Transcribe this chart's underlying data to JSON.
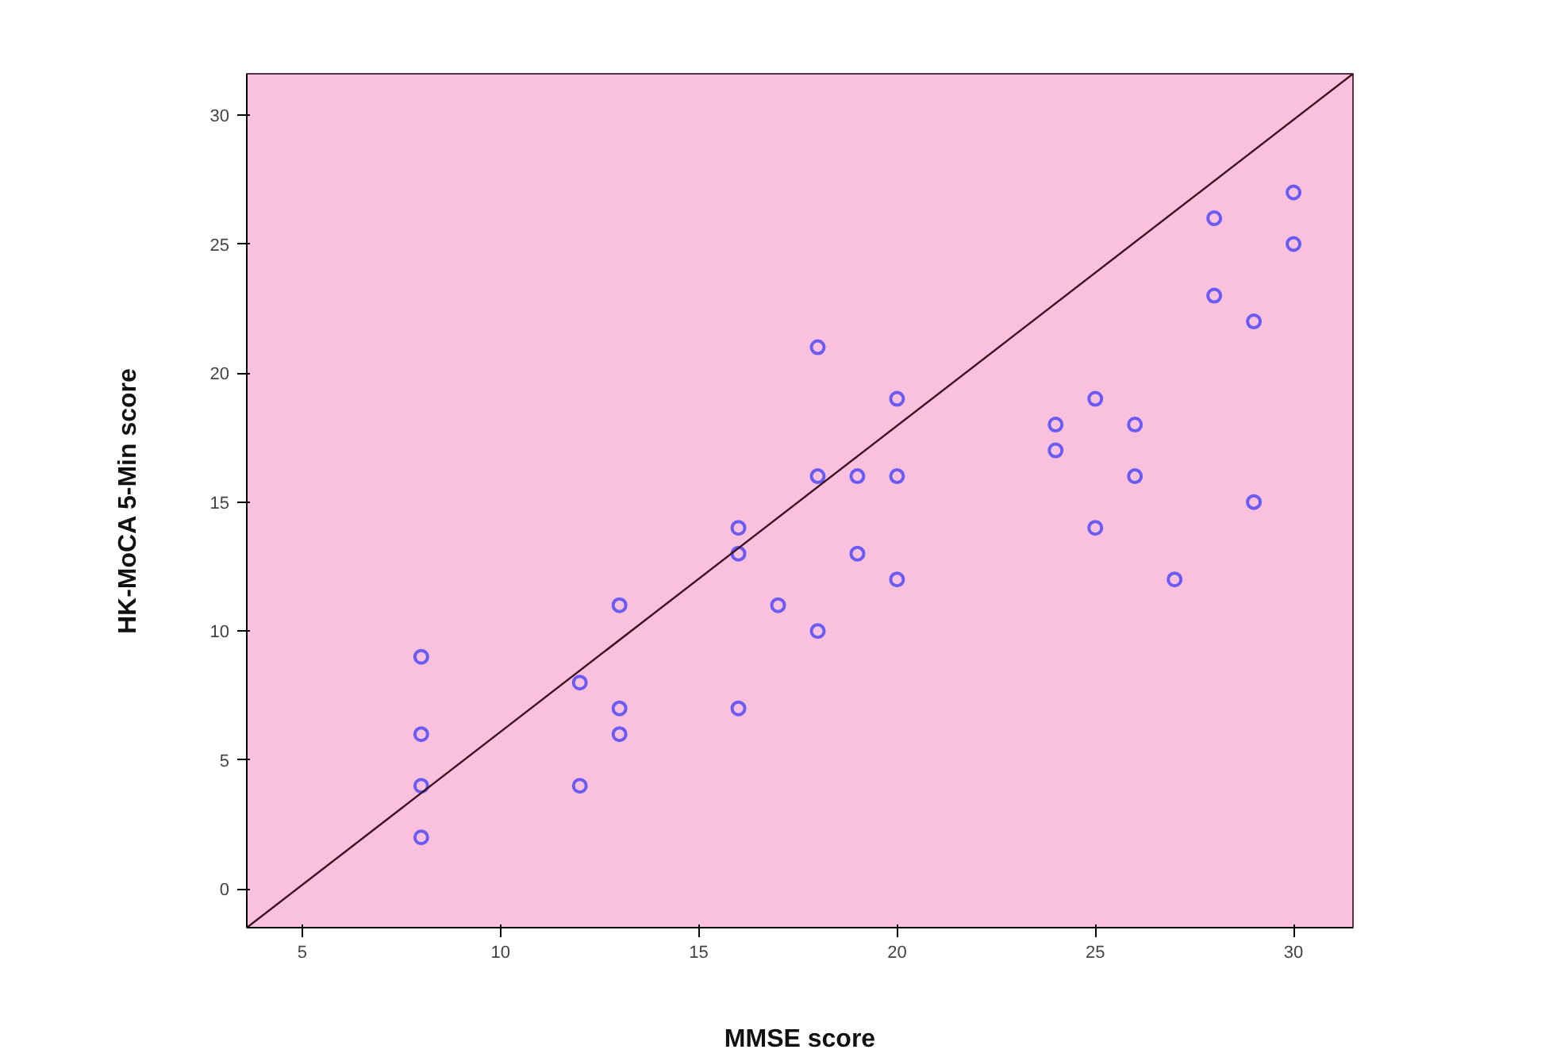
{
  "chart_data": {
    "type": "scatter",
    "xlabel": "MMSE score",
    "ylabel": "HK-MoCA 5-Min score",
    "xlim": [
      3.6,
      31.5
    ],
    "ylim": [
      -1.5,
      31.6
    ],
    "xticks": [
      5,
      10,
      15,
      20,
      25,
      30
    ],
    "yticks": [
      0,
      5,
      10,
      15,
      20,
      25,
      30
    ],
    "grid": false,
    "series": [
      {
        "marker": "circle",
        "color": "#6a5cf0",
        "x": [
          8,
          8,
          8,
          8,
          12,
          12,
          13,
          13,
          13,
          16,
          16,
          16,
          17,
          18,
          18,
          18,
          19,
          19,
          20,
          20,
          20,
          24,
          24,
          25,
          25,
          26,
          26,
          27,
          28,
          28,
          29,
          29,
          30,
          30
        ],
        "values": [
          9,
          6,
          4,
          2,
          8,
          4,
          11,
          7,
          6,
          14,
          13,
          7,
          11,
          21,
          16,
          10,
          16,
          13,
          19,
          16,
          12,
          18,
          17,
          19,
          14,
          18,
          16,
          12,
          26,
          23,
          22,
          15,
          27,
          25
        ]
      },
      {
        "type": "line",
        "marker": "none",
        "color": "#3a1020",
        "x": [
          3.6,
          31.5
        ],
        "values": [
          -1.5,
          31.6
        ]
      }
    ]
  }
}
